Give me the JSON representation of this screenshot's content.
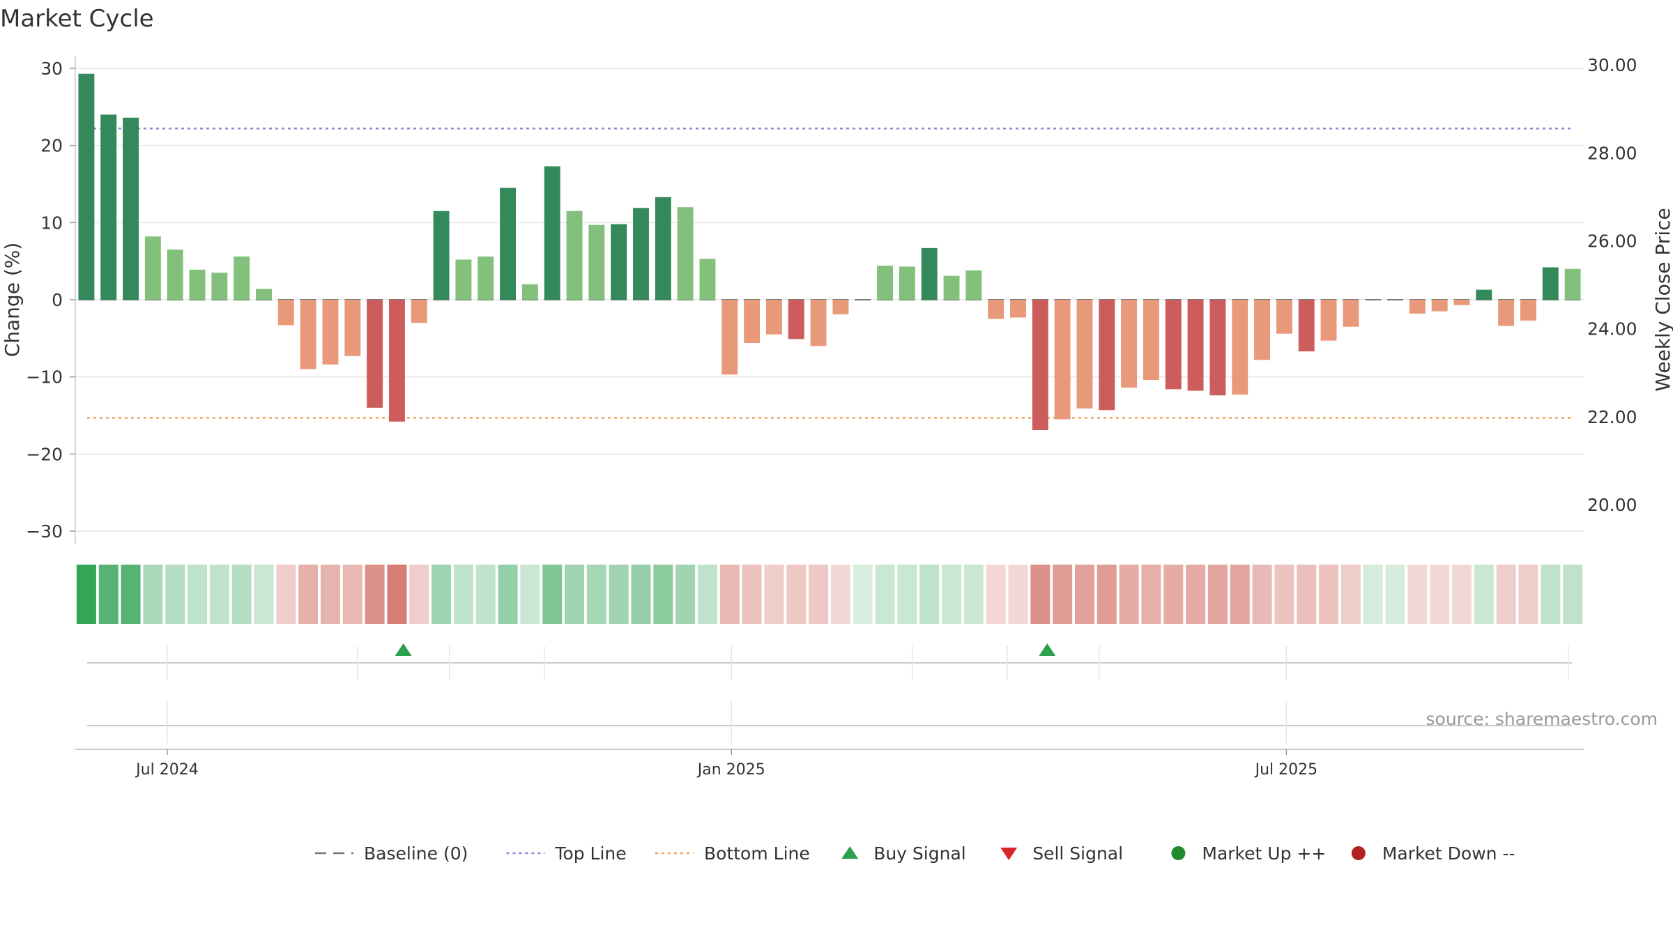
{
  "chart_data": {
    "type": "bar",
    "title": "Market Cycle",
    "ylabel": "Change (%)",
    "y2label": "Weekly Close Price",
    "ylim": [
      -30,
      30
    ],
    "yticks": [
      30,
      20,
      10,
      0,
      -10,
      -20,
      -30
    ],
    "ytick_labels": [
      "30",
      "20",
      "10",
      "0",
      "−10",
      "−20",
      "−30"
    ],
    "y2lim": [
      19.0,
      31.0
    ],
    "y2ticks": [
      30,
      28,
      26,
      24,
      22,
      20
    ],
    "y2tick_labels": [
      "30.00",
      "28.00",
      "26.00",
      "24.00",
      "22.00",
      "20.00"
    ],
    "top_line": 22.2,
    "bottom_line": -15.3,
    "x_start": "2024-06-01",
    "x_end": "2025-10-06",
    "bar_dates": [
      "2024-06-03",
      "2024-06-10",
      "2024-06-17",
      "2024-06-24",
      "2024-07-01",
      "2024-07-08",
      "2024-07-15",
      "2024-07-22",
      "2024-07-29",
      "2024-08-05",
      "2024-08-12",
      "2024-08-19",
      "2024-08-26",
      "2024-09-02",
      "2024-09-09",
      "2024-09-16",
      "2024-09-23",
      "2024-09-30",
      "2024-10-07",
      "2024-10-14",
      "2024-10-21",
      "2024-10-28",
      "2024-11-04",
      "2024-11-11",
      "2024-11-18",
      "2024-11-25",
      "2024-12-02",
      "2024-12-09",
      "2024-12-16",
      "2024-12-23",
      "2024-12-30",
      "2025-01-06",
      "2025-01-13",
      "2025-01-20",
      "2025-01-27",
      "2025-02-03",
      "2025-02-10",
      "2025-02-17",
      "2025-02-24",
      "2025-03-03",
      "2025-03-10",
      "2025-03-17",
      "2025-03-24",
      "2025-03-31",
      "2025-04-07",
      "2025-04-14",
      "2025-04-21",
      "2025-04-28",
      "2025-05-05",
      "2025-05-12",
      "2025-05-19",
      "2025-05-26",
      "2025-06-02",
      "2025-06-09",
      "2025-06-16",
      "2025-06-23",
      "2025-06-30",
      "2025-07-07",
      "2025-07-14",
      "2025-07-21",
      "2025-07-28",
      "2025-08-04",
      "2025-08-11",
      "2025-08-18",
      "2025-08-25",
      "2025-09-01",
      "2025-09-08",
      "2025-09-15",
      "2025-09-22",
      "2025-09-29"
    ],
    "values": [
      29.3,
      24.0,
      23.6,
      8.2,
      6.5,
      3.9,
      3.5,
      5.6,
      1.4,
      -3.3,
      -9.0,
      -8.4,
      -7.3,
      -14.0,
      -15.8,
      -3.0,
      11.5,
      5.2,
      5.6,
      14.5,
      2.0,
      17.3,
      11.5,
      9.7,
      9.8,
      11.9,
      13.3,
      12.0,
      5.3,
      -9.7,
      -5.6,
      -4.5,
      -5.1,
      -6.0,
      -1.9,
      0,
      4.4,
      4.3,
      6.7,
      3.1,
      3.8,
      -2.5,
      -2.3,
      -16.9,
      -15.5,
      -14.1,
      -14.3,
      -11.4,
      -10.4,
      -11.6,
      -11.8,
      -12.4,
      -12.3,
      -7.8,
      -4.4,
      -6.7,
      -5.3,
      -3.5,
      0,
      0,
      -1.8,
      -1.5,
      -0.7,
      1.3,
      -3.4,
      -2.7,
      4.2,
      4.0
    ],
    "color_levels": [
      3,
      2,
      2,
      1,
      1,
      1,
      1,
      1,
      1,
      -1,
      -1,
      -1,
      -1,
      -2,
      -2,
      -1,
      2,
      1,
      1,
      2,
      1,
      2,
      1,
      1,
      2,
      2,
      2,
      1,
      1,
      -1,
      -1,
      -1,
      -2,
      -1,
      -1,
      0,
      1,
      1,
      2,
      1,
      1,
      -1,
      -1,
      -2,
      -1,
      -1,
      -2,
      -1,
      -1,
      -2,
      -2,
      -2,
      -1,
      -1,
      -1,
      -2,
      -1,
      -1,
      0,
      0,
      -1,
      -1,
      -1,
      2,
      -1,
      -1,
      2,
      1
    ],
    "heat_intensity": [
      0.95,
      0.8,
      0.8,
      0.4,
      0.35,
      0.3,
      0.3,
      0.35,
      0.25,
      0.25,
      0.4,
      0.38,
      0.36,
      0.55,
      0.65,
      0.25,
      0.45,
      0.3,
      0.3,
      0.5,
      0.25,
      0.6,
      0.45,
      0.42,
      0.45,
      0.5,
      0.55,
      0.45,
      0.3,
      0.35,
      0.3,
      0.25,
      0.28,
      0.28,
      0.2,
      0.18,
      0.25,
      0.25,
      0.3,
      0.25,
      0.25,
      0.2,
      0.2,
      0.55,
      0.5,
      0.48,
      0.5,
      0.42,
      0.4,
      0.42,
      0.43,
      0.45,
      0.45,
      0.35,
      0.3,
      0.32,
      0.3,
      0.25,
      0.2,
      0.2,
      0.2,
      0.2,
      0.2,
      0.25,
      0.25,
      0.25,
      0.3,
      0.3
    ],
    "buy_signals": [
      "2024-09-16",
      "2025-04-14"
    ],
    "sell_signals": [],
    "x_tick_dates": [
      "2024-07-01",
      "2025-01-01",
      "2025-07-01"
    ],
    "x_tick_labels": [
      "Jul 2024",
      "Jan 2025",
      "Jul 2025"
    ],
    "minor_tick_dates": [
      "2024-07-01",
      "2024-10-01",
      "2025-01-01",
      "2025-04-01",
      "2025-07-01",
      "2025-10-01"
    ],
    "minor_tick_dates_mid": [
      "2024-09-01",
      "2024-11-01",
      "2025-03-01",
      "2025-05-01",
      "2025-07-01"
    ],
    "grid": true,
    "legend_position": "bottom-center",
    "legend": [
      {
        "label": "Baseline (0)",
        "kind": "dash",
        "color": "#777777"
      },
      {
        "label": "Top Line",
        "kind": "dots",
        "color": "#9b7fd6"
      },
      {
        "label": "Bottom Line",
        "kind": "dots",
        "color": "#f0a35a"
      },
      {
        "label": "Buy Signal",
        "kind": "tri-up",
        "color": "#2ca04f"
      },
      {
        "label": "Sell Signal",
        "kind": "tri-down",
        "color": "#d62728"
      },
      {
        "label": "Market Up ++",
        "kind": "circle",
        "color": "#1f8a2e"
      },
      {
        "label": "Market Down --",
        "kind": "circle",
        "color": "#b22222"
      }
    ],
    "source": "source: sharemaestro.com",
    "colors": {
      "up_strong": "#34895a",
      "up_light": "#82c07c",
      "down_strong": "#cd5c5c",
      "down_light": "#e8997a",
      "top_line": "#9b7fd6",
      "bottom_line": "#f0a35a",
      "baseline": "#777777",
      "heat_green": "#2ca04f",
      "heat_red": "#c0392b"
    }
  }
}
